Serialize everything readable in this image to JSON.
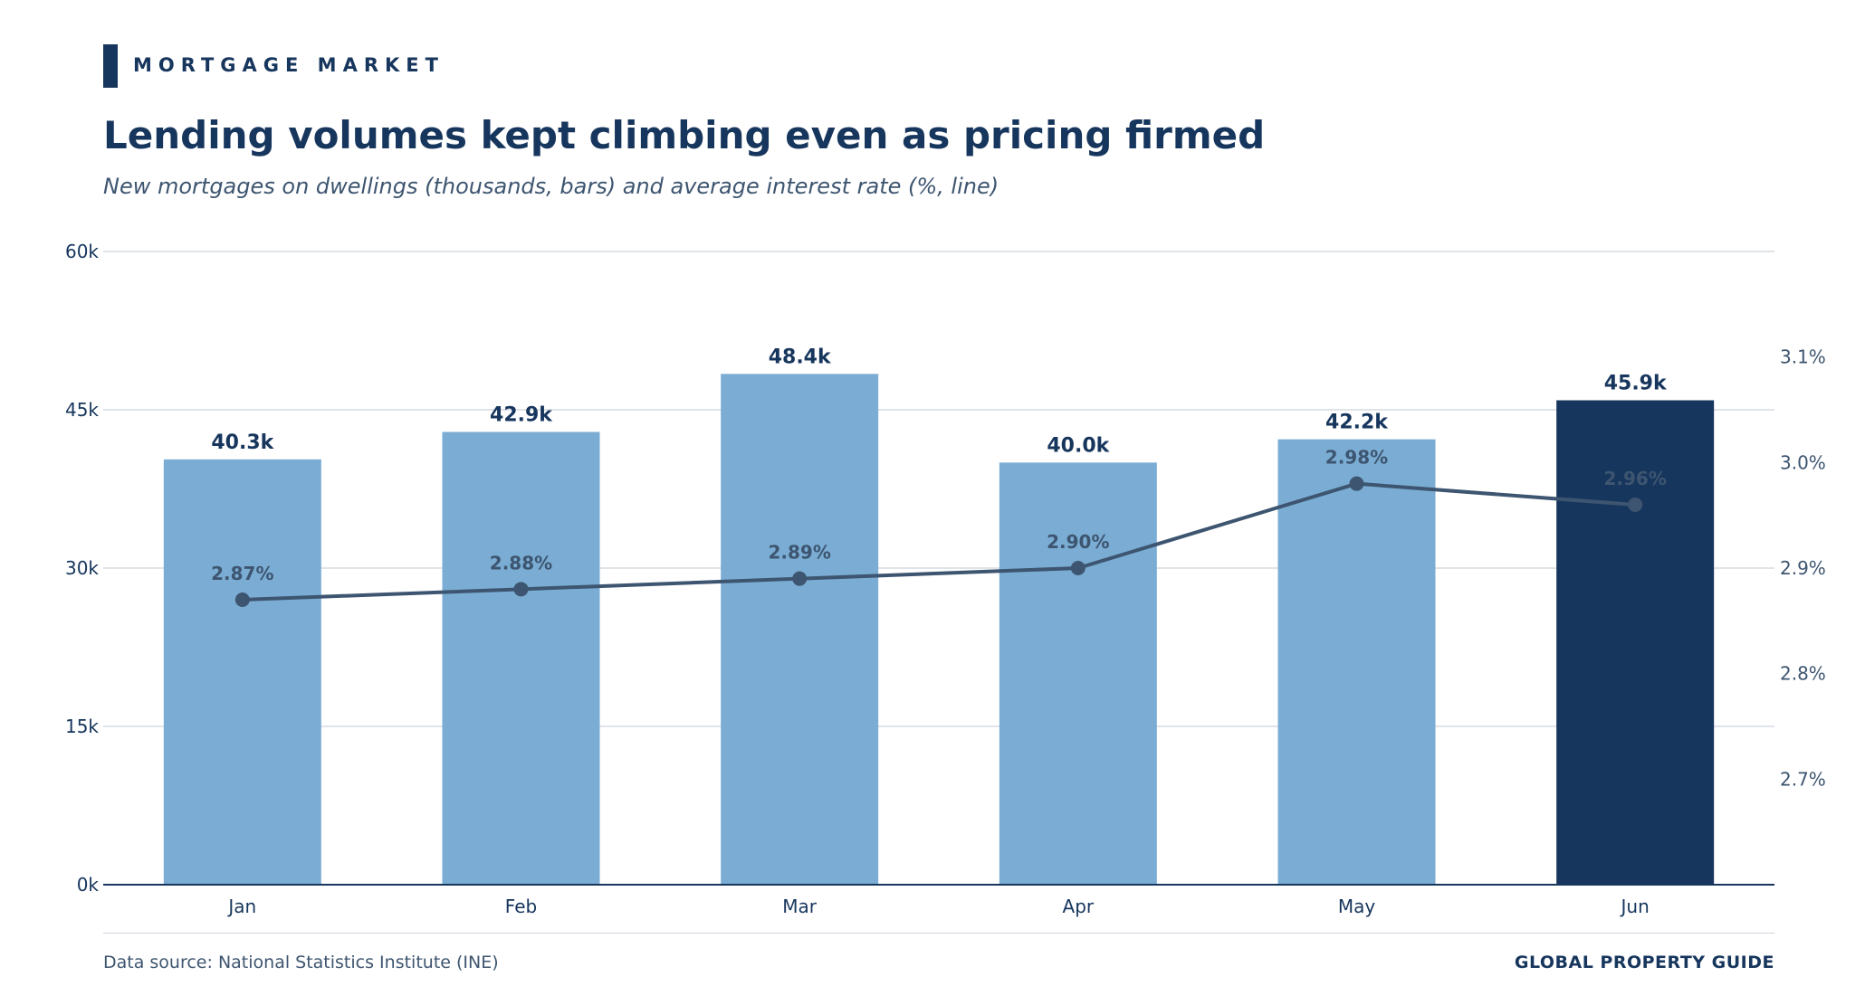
{
  "kicker": "MORTGAGE MARKET",
  "title": "Lending volumes kept climbing even as pricing firmed",
  "subtitle": "New mortgages on dwellings (thousands, bars) and average interest rate (%, line)",
  "footer": {
    "source": "Data source: National Statistics Institute (INE)",
    "brand": "GLOBAL PROPERTY GUIDE"
  },
  "colors": {
    "bar": "#7badd4",
    "bar_highlight": "#17365d",
    "line": "#3d5570",
    "text": "#17365d",
    "grid": "#d5dae0"
  },
  "chart_data": {
    "type": "bar",
    "categories": [
      "Jan",
      "Feb",
      "Mar",
      "Apr",
      "May",
      "Jun"
    ],
    "series": [
      {
        "type": "bar",
        "axis": "left",
        "values": [
          40.3,
          42.9,
          48.4,
          40.0,
          42.2,
          45.9
        ],
        "labels": [
          "40.3k",
          "42.9k",
          "48.4k",
          "40.0k",
          "42.2k",
          "45.9k"
        ],
        "highlight_index": 5
      },
      {
        "type": "line",
        "axis": "right",
        "values": [
          2.87,
          2.88,
          2.89,
          2.9,
          2.98,
          2.96
        ],
        "labels": [
          "2.87%",
          "2.88%",
          "2.89%",
          "2.90%",
          "2.98%",
          "2.96%"
        ]
      }
    ],
    "y_left": {
      "lim": [
        0,
        60
      ],
      "ticks": [
        0,
        15,
        30,
        45,
        60
      ],
      "tick_labels": [
        "0k",
        "15k",
        "30k",
        "45k",
        "60k"
      ]
    },
    "y_right": {
      "lim": [
        2.6,
        3.2
      ],
      "ticks": [
        2.7,
        2.8,
        2.9,
        3.0,
        3.1
      ],
      "tick_labels": [
        "2.7%",
        "2.8%",
        "2.9%",
        "3.0%",
        "3.1%"
      ]
    },
    "grid": true
  }
}
